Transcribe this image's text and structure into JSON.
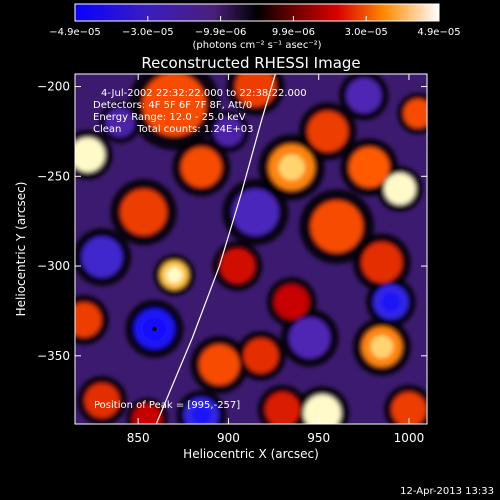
{
  "chart_data": {
    "type": "heatmap",
    "title": "Reconstructed RHESSI Image",
    "xlabel": "Heliocentric X (arcsec)",
    "ylabel": "Heliocentric Y (arcsec)",
    "xlim": [
      815,
      1010
    ],
    "ylim": [
      -388,
      -193
    ],
    "x_ticks": [
      850,
      900,
      950,
      1000
    ],
    "y_ticks": [
      -200,
      -250,
      -300,
      -350
    ],
    "colorbar": {
      "ticks": [
        "−4.9e−05",
        "−3.0e−05",
        "−9.9e−06",
        "9.9e−06",
        "3.0e−05",
        "4.9e−05"
      ],
      "unit_label": "(photons cm⁻² s⁻¹ asec⁻²)",
      "range": [
        -4.9e-05,
        4.9e-05
      ]
    },
    "annotations": [
      "4-Jul-2002 22:32:22.000 to 22:38:22.000",
      "Detectors: 4F 5F 6F 7F 8F, Att/0",
      "Energy Range: 12.0 - 25.0 keV",
      "Clean     Total counts: 1.24E+03"
    ],
    "peak_label": "Position of Peak = [995,-257]",
    "peak": {
      "x": 995,
      "y": -257
    },
    "min_marker": {
      "x": 859,
      "y": -335
    },
    "limb_curve": [
      [
        860,
        -388
      ],
      [
        880,
        -340
      ],
      [
        895,
        -300
      ],
      [
        907,
        -260
      ],
      [
        918,
        -220
      ],
      [
        926,
        -193
      ]
    ],
    "blobs": [
      {
        "x": 822,
        "y": -238,
        "v": 1.0,
        "r": 12
      },
      {
        "x": 870,
        "y": -210,
        "v": 0.55,
        "r": 22
      },
      {
        "x": 915,
        "y": -200,
        "v": 0.5,
        "r": 14
      },
      {
        "x": 885,
        "y": -245,
        "v": 0.55,
        "r": 14
      },
      {
        "x": 853,
        "y": -270,
        "v": 0.5,
        "r": 16
      },
      {
        "x": 935,
        "y": -245,
        "v": 0.7,
        "r": 16
      },
      {
        "x": 955,
        "y": -225,
        "v": 0.5,
        "r": 14
      },
      {
        "x": 978,
        "y": -245,
        "v": 0.6,
        "r": 14
      },
      {
        "x": 995,
        "y": -257,
        "v": 1.0,
        "r": 11
      },
      {
        "x": 1005,
        "y": -215,
        "v": 0.55,
        "r": 10
      },
      {
        "x": 960,
        "y": -278,
        "v": 0.55,
        "r": 18
      },
      {
        "x": 985,
        "y": -298,
        "v": 0.45,
        "r": 14
      },
      {
        "x": 870,
        "y": -305,
        "v": 0.85,
        "r": 10
      },
      {
        "x": 820,
        "y": -330,
        "v": 0.5,
        "r": 12
      },
      {
        "x": 905,
        "y": -300,
        "v": 0.35,
        "r": 12
      },
      {
        "x": 935,
        "y": -320,
        "v": 0.3,
        "r": 12
      },
      {
        "x": 895,
        "y": -355,
        "v": 0.55,
        "r": 14
      },
      {
        "x": 918,
        "y": -350,
        "v": 0.45,
        "r": 12
      },
      {
        "x": 930,
        "y": -380,
        "v": 0.4,
        "r": 12
      },
      {
        "x": 952,
        "y": -382,
        "v": 1.0,
        "r": 13
      },
      {
        "x": 985,
        "y": -345,
        "v": 0.7,
        "r": 14
      },
      {
        "x": 1000,
        "y": -380,
        "v": 0.5,
        "r": 12
      },
      {
        "x": 830,
        "y": -375,
        "v": 0.45,
        "r": 12
      },
      {
        "x": 855,
        "y": -385,
        "v": 0.3,
        "r": 10
      },
      {
        "x": 859,
        "y": -335,
        "v": -0.9,
        "r": 14
      },
      {
        "x": 885,
        "y": -383,
        "v": -0.7,
        "r": 12
      },
      {
        "x": 990,
        "y": -320,
        "v": -0.7,
        "r": 12
      },
      {
        "x": 915,
        "y": -270,
        "v": -0.45,
        "r": 16
      },
      {
        "x": 830,
        "y": -295,
        "v": -0.55,
        "r": 14
      },
      {
        "x": 945,
        "y": -340,
        "v": -0.4,
        "r": 14
      },
      {
        "x": 975,
        "y": -205,
        "v": -0.4,
        "r": 12
      },
      {
        "x": 840,
        "y": -220,
        "v": -0.35,
        "r": 10
      },
      {
        "x": 900,
        "y": -225,
        "v": -0.35,
        "r": 10
      }
    ]
  },
  "footer": {
    "timestamp": "12-Apr-2013 13:33"
  }
}
